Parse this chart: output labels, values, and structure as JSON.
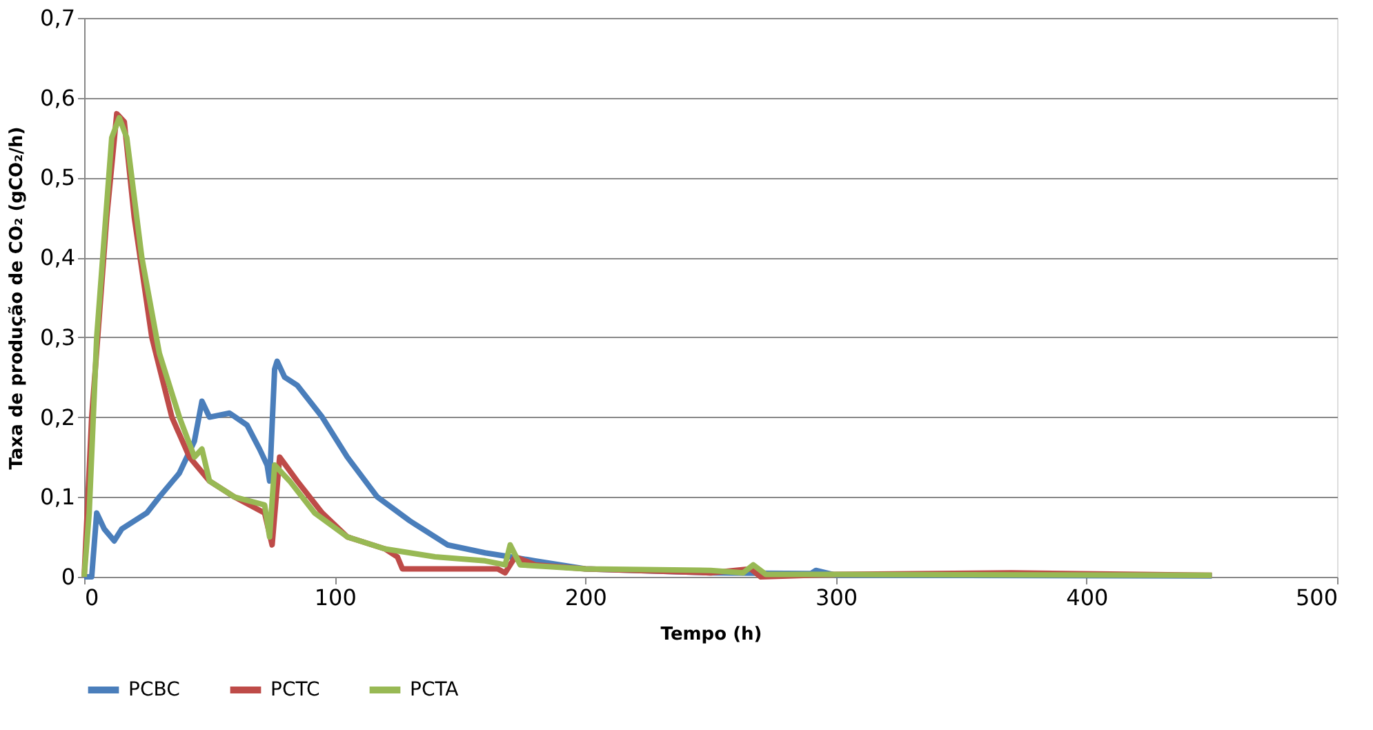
{
  "chart_data": {
    "type": "line",
    "xlabel": "Tempo (h)",
    "ylabel": "Taxa de produção de CO₂ (gCO₂/h)",
    "xlim": [
      0,
      500
    ],
    "xticks": [
      0,
      100,
      200,
      300,
      400,
      500
    ],
    "ylim": [
      0,
      0.7
    ],
    "yticks": [
      0,
      {
        "value": 0.1,
        "label": "0,1"
      },
      {
        "value": 0.2,
        "label": "0,2"
      },
      {
        "value": 0.3,
        "label": "0,3"
      },
      {
        "value": 0.4,
        "label": "0,4"
      },
      {
        "value": 0.5,
        "label": "0,5"
      },
      {
        "value": 0.6,
        "label": "0,6"
      },
      {
        "value": 0.7,
        "label": "0,7"
      }
    ],
    "grid": "y",
    "legend": "bottom",
    "marker": "none",
    "line_style": "solid",
    "series": [
      {
        "name": "PCBC",
        "color": "#4a7ebb",
        "x": [
          0,
          3,
          5,
          8,
          12,
          15,
          25,
          30,
          38,
          44,
          47,
          50,
          58,
          65,
          70,
          73,
          74,
          76,
          77,
          80,
          85,
          95,
          105,
          117,
          130,
          145,
          160,
          170,
          180,
          200,
          250,
          290,
          292,
          300,
          450
        ],
        "values": [
          0,
          0,
          0.08,
          0.06,
          0.045,
          0.06,
          0.08,
          0.1,
          0.13,
          0.17,
          0.22,
          0.2,
          0.205,
          0.19,
          0.16,
          0.14,
          0.12,
          0.26,
          0.27,
          0.25,
          0.24,
          0.2,
          0.15,
          0.1,
          0.07,
          0.04,
          0.03,
          0.025,
          0.02,
          0.01,
          0.005,
          0.004,
          0.008,
          0.002,
          0.001
        ]
      },
      {
        "name": "PCTC",
        "color": "#be4b48",
        "x": [
          0,
          3,
          9,
          13,
          16,
          20,
          27,
          35,
          42,
          50,
          60,
          72,
          75,
          78,
          85,
          95,
          105,
          120,
          125,
          127,
          165,
          168,
          172,
          180,
          200,
          250,
          266,
          270,
          300,
          370,
          450
        ],
        "values": [
          0,
          0.2,
          0.45,
          0.58,
          0.57,
          0.45,
          0.3,
          0.2,
          0.15,
          0.12,
          0.1,
          0.08,
          0.04,
          0.15,
          0.12,
          0.08,
          0.05,
          0.035,
          0.025,
          0.01,
          0.01,
          0.005,
          0.025,
          0.015,
          0.01,
          0.005,
          0.01,
          0,
          0.003,
          0.005,
          0.002
        ]
      },
      {
        "name": "PCTA",
        "color": "#98b954",
        "x": [
          0,
          2,
          5,
          11,
          14,
          17,
          23,
          30,
          38,
          44,
          47,
          50,
          60,
          72,
          74,
          76,
          82,
          92,
          105,
          120,
          140,
          160,
          168,
          170,
          174,
          200,
          250,
          263,
          267,
          272,
          300,
          450
        ],
        "values": [
          0,
          0.08,
          0.3,
          0.55,
          0.575,
          0.55,
          0.4,
          0.28,
          0.2,
          0.15,
          0.16,
          0.12,
          0.1,
          0.09,
          0.05,
          0.14,
          0.12,
          0.08,
          0.05,
          0.035,
          0.025,
          0.02,
          0.015,
          0.04,
          0.015,
          0.01,
          0.008,
          0.005,
          0.015,
          0.003,
          0.003,
          0.002
        ]
      }
    ]
  }
}
